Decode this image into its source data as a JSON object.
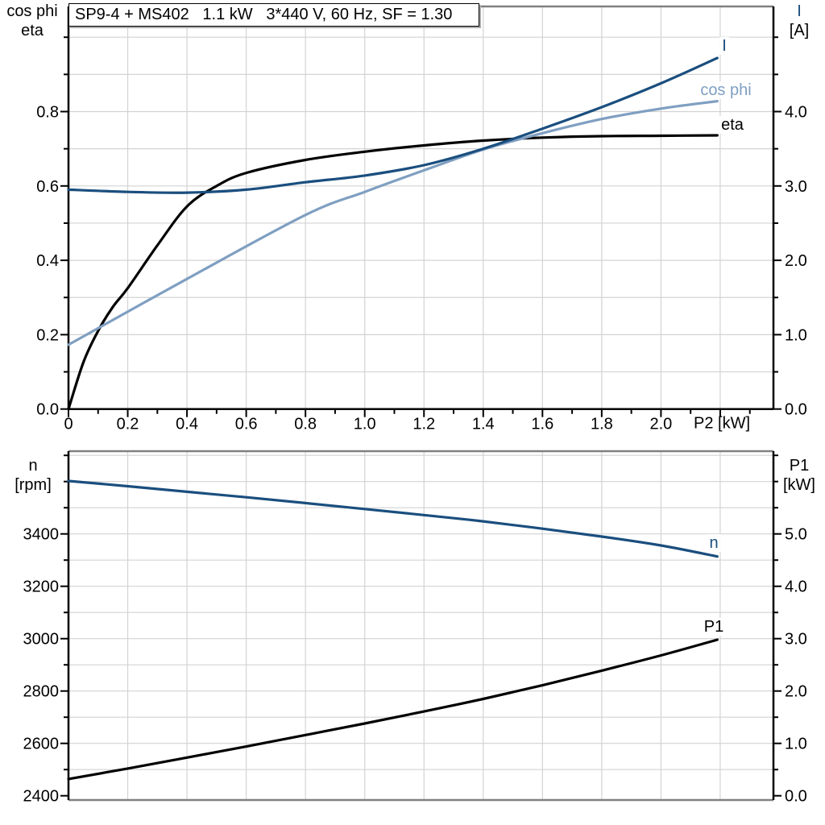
{
  "title": "SP9-4 + MS402   1.1 kW   3*440 V, 60 Hz, SF = 1.30",
  "colors": {
    "dark_blue": "#1a4e7e",
    "light_blue": "#7f9fc1",
    "black": "#000000",
    "grid": "#d3d3d3",
    "border_gray": "#808080"
  },
  "top_chart": {
    "left_axis_title_line1": "cos phi",
    "left_axis_title_line2": "eta",
    "right_axis_title_line1": "I",
    "right_axis_title_line2": "[A]",
    "x_axis_unit_label": "P2 [kW]",
    "left_tick_labels": [
      "0.0",
      "0.2",
      "0.4",
      "0.6",
      "0.8"
    ],
    "right_tick_labels": [
      "0.0",
      "1.0",
      "2.0",
      "3.0",
      "4.0"
    ],
    "x_tick_labels": [
      "0",
      "0.2",
      "0.4",
      "0.6",
      "0.8",
      "1.0",
      "1.2",
      "1.4",
      "1.6",
      "1.8",
      "2.0"
    ],
    "curve_label_I": "I",
    "curve_label_cos_phi": "cos phi",
    "curve_label_eta": "eta"
  },
  "bottom_chart": {
    "left_axis_title_line1": "n",
    "left_axis_title_line2": "[rpm]",
    "right_axis_title_line1": "P1",
    "right_axis_title_line2": "[kW]",
    "left_tick_labels": [
      "2400",
      "2600",
      "2800",
      "3000",
      "3200",
      "3400"
    ],
    "right_tick_labels": [
      "0.0",
      "1.0",
      "2.0",
      "3.0",
      "4.0",
      "5.0"
    ],
    "curve_label_n": "n",
    "curve_label_P1": "P1"
  },
  "chart_data": [
    {
      "type": "line",
      "title": "SP9-4 + MS402   1.1 kW   3*440 V, 60 Hz, SF = 1.30",
      "xlabel": "P2 [kW]",
      "x_range": [
        0,
        2.38
      ],
      "grid": true,
      "left_axis": {
        "label": "cos phi / eta",
        "range": [
          0,
          1.083
        ],
        "ticks": [
          0.0,
          0.2,
          0.4,
          0.6,
          0.8
        ]
      },
      "right_axis": {
        "label": "I [A]",
        "range": [
          0,
          5.42
        ],
        "ticks": [
          0.0,
          1.0,
          2.0,
          3.0,
          4.0
        ]
      },
      "x_ticks": [
        0,
        0.2,
        0.4,
        0.6,
        0.8,
        1.0,
        1.2,
        1.4,
        1.6,
        1.8,
        2.0
      ],
      "series": [
        {
          "name": "eta",
          "axis": "left",
          "color": "#000000",
          "x": [
            0,
            0.05,
            0.1,
            0.15,
            0.2,
            0.3,
            0.4,
            0.5,
            0.6,
            0.8,
            1.0,
            1.2,
            1.4,
            1.6,
            1.8,
            2.0,
            2.19
          ],
          "y": [
            0,
            0.125,
            0.21,
            0.275,
            0.325,
            0.44,
            0.545,
            0.6,
            0.635,
            0.67,
            0.692,
            0.709,
            0.722,
            0.73,
            0.734,
            0.735,
            0.736
          ]
        },
        {
          "name": "cos phi",
          "axis": "left",
          "color": "#7f9fc1",
          "x": [
            0,
            0.4,
            0.8,
            1.0,
            1.2,
            1.4,
            1.6,
            1.8,
            2.0,
            2.19
          ],
          "y": [
            0.173,
            0.35,
            0.522,
            0.584,
            0.642,
            0.698,
            0.742,
            0.78,
            0.808,
            0.828
          ]
        },
        {
          "name": "I",
          "axis": "right",
          "color": "#1a4e7e",
          "x": [
            0,
            0.2,
            0.4,
            0.6,
            0.8,
            1.0,
            1.2,
            1.4,
            1.6,
            1.8,
            2.0,
            2.19
          ],
          "y": [
            2.95,
            2.92,
            2.91,
            2.95,
            3.05,
            3.14,
            3.28,
            3.5,
            3.77,
            4.06,
            4.38,
            4.72
          ]
        }
      ]
    },
    {
      "type": "line",
      "title": "",
      "xlabel": "P2 [kW]",
      "x_range": [
        0,
        2.38
      ],
      "grid": true,
      "left_axis": {
        "label": "n [rpm]",
        "range": [
          2384,
          3716
        ],
        "ticks": [
          2400,
          2600,
          2800,
          3000,
          3200,
          3400
        ]
      },
      "right_axis": {
        "label": "P1 [kW]",
        "range": [
          -0.08,
          6.58
        ],
        "ticks": [
          0.0,
          1.0,
          2.0,
          3.0,
          4.0,
          5.0
        ]
      },
      "x_ticks": [],
      "series": [
        {
          "name": "n",
          "axis": "left",
          "color": "#1a4e7e",
          "x": [
            0,
            0.2,
            0.4,
            0.6,
            0.8,
            1.0,
            1.2,
            1.4,
            1.6,
            1.8,
            2.0,
            2.19
          ],
          "y": [
            3602,
            3582,
            3561,
            3540,
            3518,
            3495,
            3472,
            3448,
            3420,
            3390,
            3356,
            3314
          ]
        },
        {
          "name": "P1",
          "axis": "right",
          "color": "#000000",
          "x": [
            0,
            0.2,
            0.4,
            0.6,
            0.8,
            1.0,
            1.2,
            1.4,
            1.6,
            1.8,
            2.0,
            2.19
          ],
          "y": [
            0.32,
            0.52,
            0.73,
            0.94,
            1.16,
            1.38,
            1.61,
            1.85,
            2.11,
            2.39,
            2.68,
            2.98
          ]
        }
      ]
    }
  ]
}
